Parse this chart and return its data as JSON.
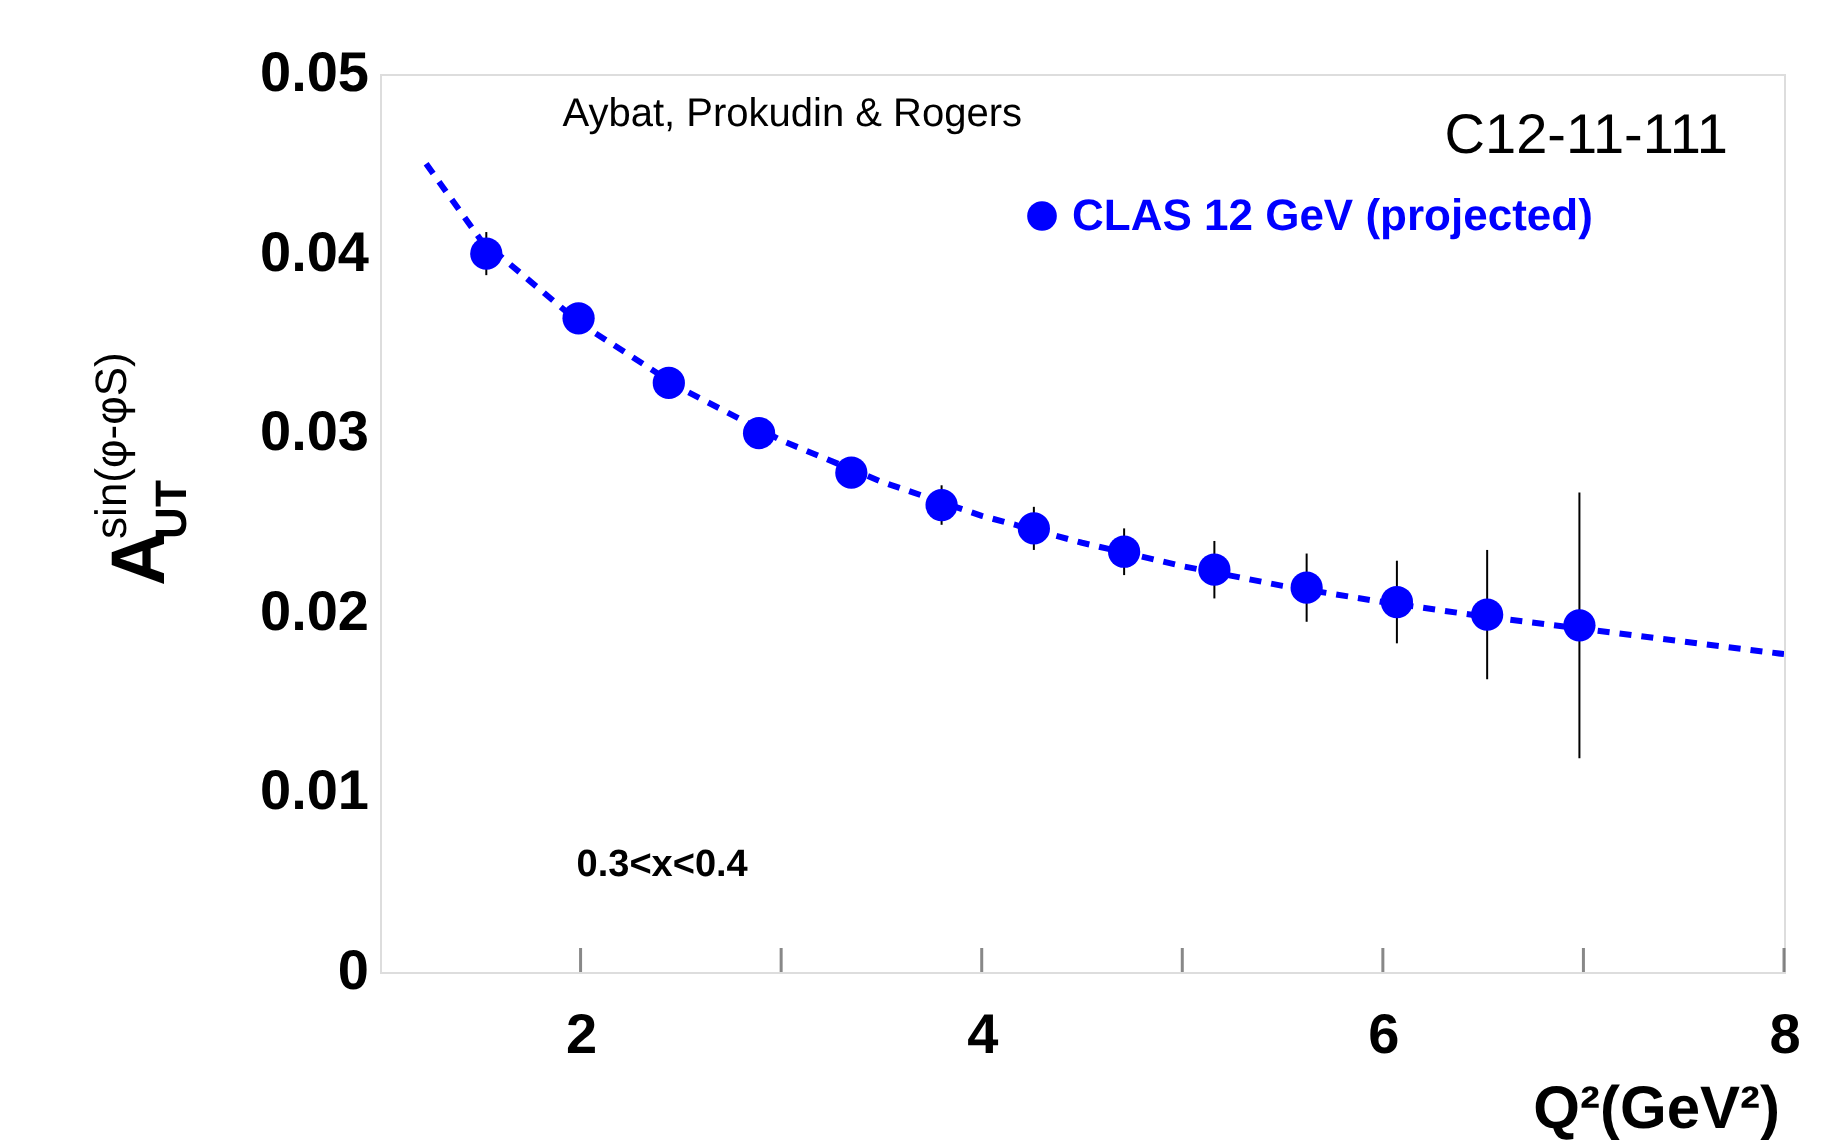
{
  "chart_data": {
    "type": "scatter",
    "xlabel": "Q²(GeV²)",
    "ylabel": "A$_{UT}$$^{sin(φ-φS)}$",
    "annotations": [
      "Aybat, Prokudin & Rogers",
      "C12-11-111",
      "0.3<x<0.4"
    ],
    "xlim": [
      1,
      8
    ],
    "xticks": [
      2,
      {
        "value": 3,
        "label": null
      },
      4,
      {
        "value": 5,
        "label": null
      },
      6,
      {
        "value": 7,
        "label": null
      },
      8
    ],
    "ylim": [
      0,
      0.05
    ],
    "yticks": [
      0,
      0.01,
      0.02,
      0.03,
      0.04,
      0.05
    ],
    "grid": false,
    "legend": "top",
    "series": [
      {
        "name": "CLAS 12 GeV (projected)",
        "color": "#0000ff",
        "marker": "circle",
        "x": [
          1.53,
          1.99,
          2.44,
          2.89,
          3.35,
          3.8,
          4.26,
          4.71,
          5.16,
          5.62,
          6.07,
          6.52,
          6.98
        ],
        "values": [
          0.04,
          0.0364,
          0.0328,
          0.03,
          0.0278,
          0.026,
          0.0247,
          0.0234,
          0.0224,
          0.0214,
          0.0206,
          0.0199,
          0.0193
        ],
        "errors": [
          0.0012,
          null,
          null,
          null,
          null,
          0.0011,
          0.0012,
          0.0013,
          0.0016,
          0.0019,
          0.0023,
          0.0036,
          0.0074
        ]
      },
      {
        "type": "line",
        "color": "#0000ff",
        "line_style": "dashed",
        "x": [
          1.23,
          1.5,
          2.0,
          2.5,
          3.0,
          3.5,
          4.0,
          4.5,
          5.0,
          5.5,
          6.0,
          6.5,
          7.0,
          7.5,
          8.0
        ],
        "values": [
          0.045,
          0.0408,
          0.0361,
          0.0325,
          0.0296,
          0.0273,
          0.0254,
          0.0239,
          0.0226,
          0.0215,
          0.0206,
          0.0198,
          0.0191,
          0.0184,
          0.0177
        ]
      }
    ]
  }
}
